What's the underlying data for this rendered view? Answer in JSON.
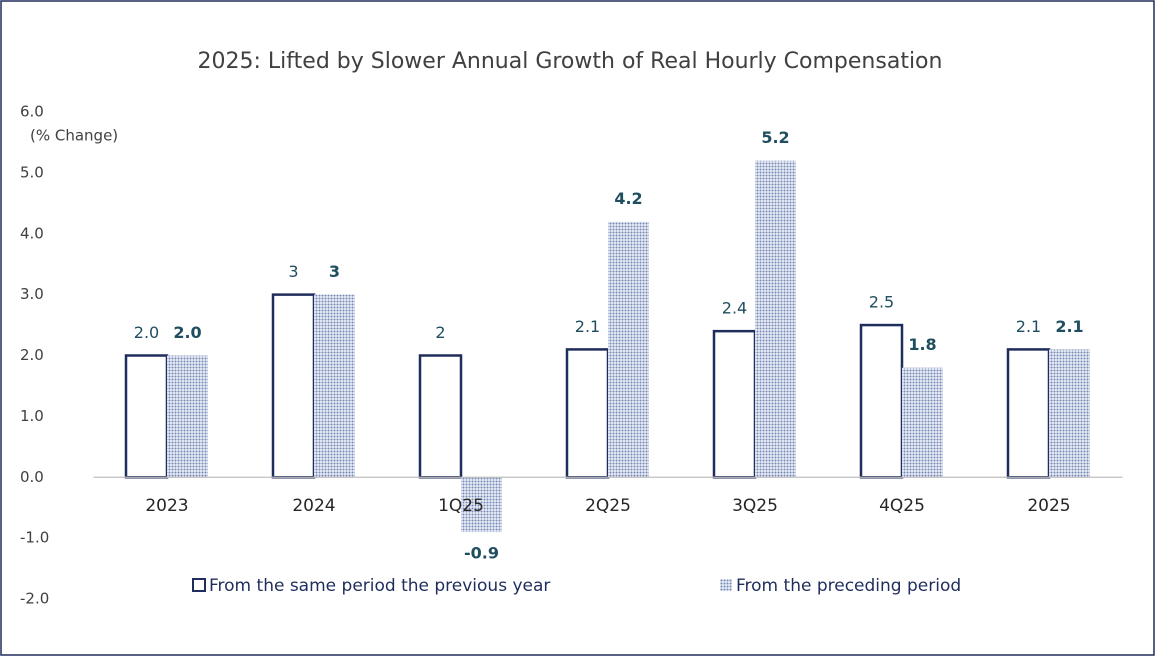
{
  "chart_data": {
    "type": "bar",
    "title": "2025: Lifted by Slower Annual Growth of Real Hourly Compensation",
    "y_label": "(% Change)",
    "categories": [
      "2023",
      "2024",
      "1Q25",
      "2Q25",
      "3Q25",
      "4Q25",
      "2025"
    ],
    "series": [
      {
        "name": "From the same period the previous year",
        "color": "#1f2d5c",
        "style": "outline",
        "values": [
          2.0,
          3,
          2,
          2.1,
          2.4,
          2.5,
          2.1
        ],
        "value_labels": [
          "2.0",
          "3",
          "2",
          "2.1",
          "2.4",
          "2.5",
          "2.1"
        ]
      },
      {
        "name": "From the preceding period",
        "color": "#7787b4",
        "style": "dotted",
        "values": [
          2.0,
          3,
          -0.9,
          4.2,
          5.2,
          1.8,
          2.1
        ],
        "value_labels": [
          "2.0",
          "3",
          "-0.9",
          "4.2",
          "5.2",
          "1.8",
          "2.1"
        ]
      }
    ],
    "ylim": [
      -2,
      6
    ],
    "yticks": [
      {
        "value": -2,
        "label": "-2.0"
      },
      {
        "value": -1,
        "label": "-1.0"
      },
      {
        "value": 0,
        "label": "0.0"
      },
      {
        "value": 1,
        "label": "1.0"
      },
      {
        "value": 2,
        "label": "2.0"
      },
      {
        "value": 3,
        "label": "3.0"
      },
      {
        "value": 4,
        "label": "4.0"
      },
      {
        "value": 5,
        "label": "5.0"
      },
      {
        "value": 6,
        "label": "6.0"
      }
    ],
    "grid": false
  }
}
